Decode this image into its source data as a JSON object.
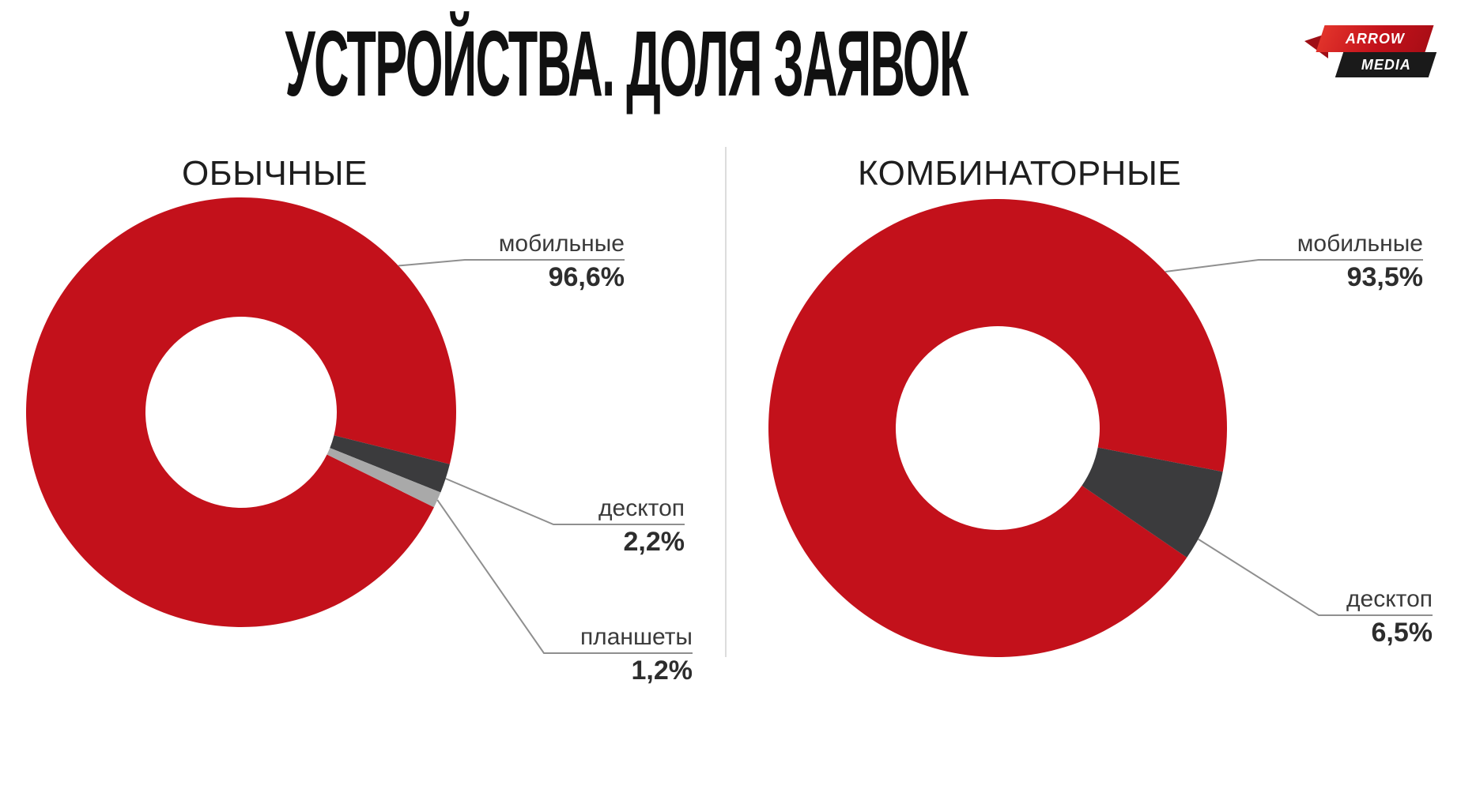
{
  "page": {
    "title": "УСТРОЙСТВА. ДОЛЯ ЗАЯВОК"
  },
  "logo": {
    "line1": "ARROW",
    "line2": "MEDIA",
    "red_color": "#c3111b",
    "black_color": "#1a1a1a"
  },
  "colors": {
    "mobile": "#c3111b",
    "desktop": "#3b3b3d",
    "tablets": "#a9a9a9",
    "leader_line": "#8f8f8f"
  },
  "chart_data": [
    {
      "type": "pie",
      "donut": true,
      "title": "ОБЫЧНЫЕ",
      "labels": [
        "мобильные",
        "десктоп",
        "планшеты"
      ],
      "values": [
        96.6,
        2.2,
        1.2
      ],
      "value_labels": [
        "96,6%",
        "2,2%",
        "1,2%"
      ],
      "colors": [
        "#c3111b",
        "#3b3b3d",
        "#a9a9a9"
      ],
      "legend_position": "callout-labels"
    },
    {
      "type": "pie",
      "donut": true,
      "title": "КОМБИНАТОРНЫЕ",
      "labels": [
        "мобильные",
        "десктоп"
      ],
      "values": [
        93.5,
        6.5
      ],
      "value_labels": [
        "93,5%",
        "6,5%"
      ],
      "colors": [
        "#c3111b",
        "#3b3b3d"
      ],
      "legend_position": "callout-labels"
    }
  ]
}
